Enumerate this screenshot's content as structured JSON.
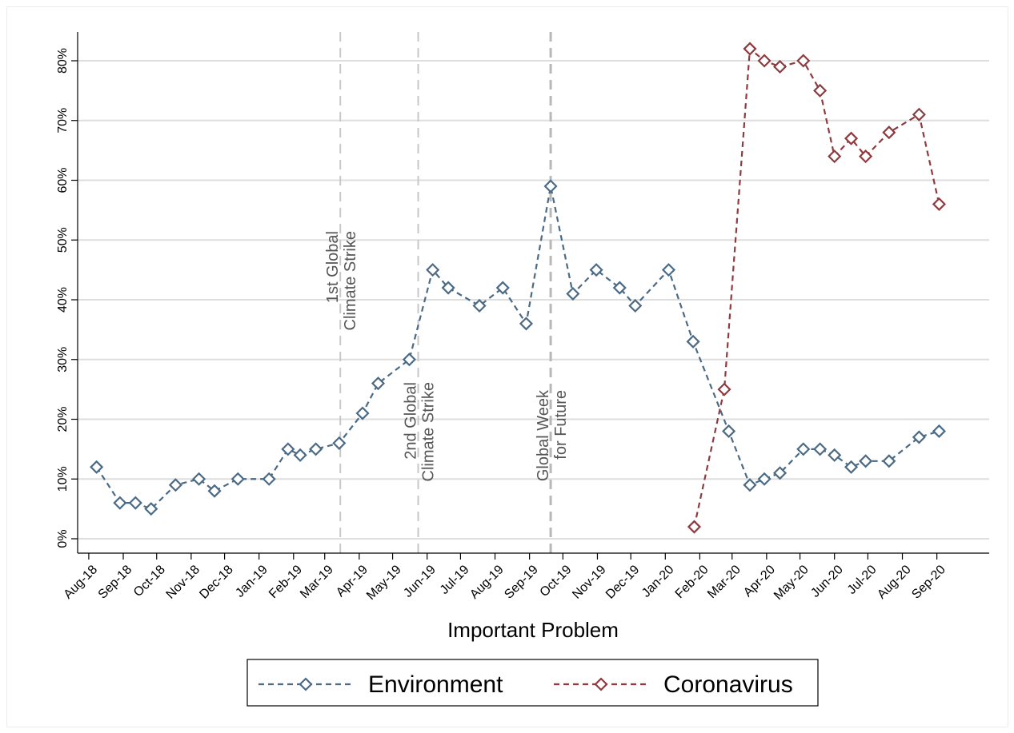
{
  "chart_data": {
    "type": "line",
    "xlabel": "Important Problem",
    "ylabel": "",
    "ylim": [
      0,
      85
    ],
    "y_ticks": [
      "0%",
      "10%",
      "20%",
      "30%",
      "40%",
      "50%",
      "60%",
      "70%",
      "80%"
    ],
    "y_tick_values": [
      0,
      10,
      20,
      30,
      40,
      50,
      60,
      70,
      80
    ],
    "x_tick_labels": [
      "Aug-18",
      "Sep-18",
      "Oct-18",
      "Nov-18",
      "Dec-18",
      "Jan-19",
      "Feb-19",
      "Mar-19",
      "Apr-19",
      "May-19",
      "Jun-19",
      "Jul-19",
      "Aug-19",
      "Sep-19",
      "Oct-19",
      "Nov-19",
      "Dec-19",
      "Jan-20",
      "Feb-20",
      "Mar-20",
      "Apr-20",
      "May-20",
      "Jun-20",
      "Jul-20",
      "Aug-20",
      "Sep-20"
    ],
    "x_tick_dates": [
      "2018-08-01",
      "2018-09-01",
      "2018-10-01",
      "2018-11-01",
      "2018-12-01",
      "2019-01-01",
      "2019-02-01",
      "2019-03-01",
      "2019-04-01",
      "2019-05-01",
      "2019-06-01",
      "2019-07-01",
      "2019-08-01",
      "2019-09-01",
      "2019-10-01",
      "2019-11-01",
      "2019-12-01",
      "2020-01-01",
      "2020-02-01",
      "2020-03-01",
      "2020-04-01",
      "2020-05-01",
      "2020-06-01",
      "2020-07-01",
      "2020-08-01",
      "2020-09-01"
    ],
    "x_range": [
      "2018-07-22",
      "2020-10-18"
    ],
    "grid": "horizontal",
    "legend_position": "bottom",
    "series": [
      {
        "name": "Environment",
        "color": "#4a6a85",
        "marker": "diamond",
        "points": [
          [
            "2018-08-08",
            12
          ],
          [
            "2018-08-29",
            6
          ],
          [
            "2018-09-12",
            6
          ],
          [
            "2018-09-26",
            5
          ],
          [
            "2018-10-18",
            9
          ],
          [
            "2018-11-08",
            10
          ],
          [
            "2018-11-22",
            8
          ],
          [
            "2018-12-13",
            10
          ],
          [
            "2019-01-10",
            10
          ],
          [
            "2019-01-27",
            15
          ],
          [
            "2019-02-07",
            14
          ],
          [
            "2019-02-21",
            15
          ],
          [
            "2019-03-14",
            16
          ],
          [
            "2019-04-04",
            21
          ],
          [
            "2019-04-18",
            26
          ],
          [
            "2019-05-16",
            30
          ],
          [
            "2019-06-06",
            45
          ],
          [
            "2019-06-20",
            42
          ],
          [
            "2019-07-18",
            39
          ],
          [
            "2019-08-08",
            42
          ],
          [
            "2019-08-29",
            36
          ],
          [
            "2019-09-20",
            59
          ],
          [
            "2019-10-10",
            41
          ],
          [
            "2019-10-31",
            45
          ],
          [
            "2019-11-21",
            42
          ],
          [
            "2019-12-05",
            39
          ],
          [
            "2020-01-04",
            45
          ],
          [
            "2020-01-26",
            33
          ],
          [
            "2020-02-27",
            18
          ],
          [
            "2020-03-17",
            9
          ],
          [
            "2020-03-30",
            10
          ],
          [
            "2020-04-13",
            11
          ],
          [
            "2020-05-04",
            15
          ],
          [
            "2020-05-19",
            15
          ],
          [
            "2020-06-01",
            14
          ],
          [
            "2020-06-16",
            12
          ],
          [
            "2020-06-29",
            13
          ],
          [
            "2020-07-20",
            13
          ],
          [
            "2020-08-16",
            17
          ],
          [
            "2020-09-03",
            18
          ]
        ]
      },
      {
        "name": "Coronavirus",
        "color": "#8e3a3e",
        "marker": "diamond",
        "points": [
          [
            "2020-01-27",
            2
          ],
          [
            "2020-02-23",
            25
          ],
          [
            "2020-03-17",
            82
          ],
          [
            "2020-03-30",
            80
          ],
          [
            "2020-04-13",
            79
          ],
          [
            "2020-05-04",
            80
          ],
          [
            "2020-05-19",
            75
          ],
          [
            "2020-06-01",
            64
          ],
          [
            "2020-06-16",
            67
          ],
          [
            "2020-06-29",
            64
          ],
          [
            "2020-07-20",
            68
          ],
          [
            "2020-08-16",
            71
          ],
          [
            "2020-09-03",
            56
          ]
        ]
      }
    ],
    "events": [
      {
        "date": "2019-03-15",
        "lines": [
          "1st Global",
          "Climate Strike"
        ]
      },
      {
        "date": "2019-05-24",
        "lines": [
          "2nd Global",
          "Climate Strike"
        ]
      },
      {
        "date": "2019-09-20",
        "lines": [
          "Global Week",
          "for Future"
        ]
      }
    ]
  }
}
